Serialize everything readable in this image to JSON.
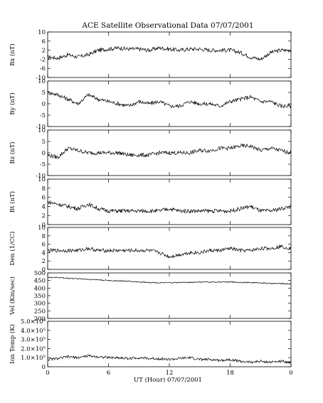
{
  "title": "ACE Satellite Observational Data   07/07/2001",
  "xlabel": "UT (Hour)   07/07/2001",
  "x_ticks": [
    "0",
    "6",
    "12",
    "18",
    "0"
  ],
  "chart_data": [
    {
      "type": "line",
      "ylabel": "Bx (nT)",
      "ylim": [
        -10,
        10
      ],
      "yticks": [
        "10",
        "6",
        "2",
        "-2",
        "-6",
        "-10"
      ],
      "x": [
        0,
        1,
        2,
        3,
        4,
        5,
        6,
        7,
        8,
        9,
        10,
        11,
        12,
        13,
        14,
        15,
        16,
        17,
        18,
        19,
        20,
        21,
        22,
        23,
        24
      ],
      "values": [
        -1,
        -1.5,
        0,
        -1,
        0,
        2,
        2.5,
        3,
        2.5,
        2.5,
        2,
        3,
        2.5,
        2,
        2.5,
        2.5,
        2,
        2,
        2,
        1,
        -1,
        -2,
        1,
        2,
        2
      ]
    },
    {
      "type": "line",
      "ylabel": "By (nT)",
      "ylim": [
        -10,
        10
      ],
      "yticks": [
        "10",
        "5",
        "0",
        "-5",
        "-10"
      ],
      "x": [
        0,
        1,
        2,
        3,
        4,
        5,
        6,
        7,
        8,
        9,
        10,
        11,
        12,
        13,
        14,
        15,
        16,
        17,
        18,
        19,
        20,
        21,
        22,
        23,
        24
      ],
      "values": [
        5,
        4,
        2,
        0,
        4,
        2,
        1,
        0,
        -1,
        1,
        0,
        1,
        -1,
        -1,
        1,
        0,
        0,
        -1,
        1,
        2,
        3,
        1,
        1,
        -1,
        -1
      ]
    },
    {
      "type": "line",
      "ylabel": "Bz (nT)",
      "ylim": [
        -10,
        10
      ],
      "yticks": [
        "10",
        "5",
        "0",
        "-5",
        "-10"
      ],
      "x": [
        0,
        1,
        2,
        3,
        4,
        5,
        6,
        7,
        8,
        9,
        10,
        11,
        12,
        13,
        14,
        15,
        16,
        17,
        18,
        19,
        20,
        21,
        22,
        23,
        24
      ],
      "values": [
        -1,
        -2,
        2,
        1,
        0,
        0,
        0,
        0,
        -1,
        -1,
        -1,
        0,
        0,
        0,
        0,
        1,
        1,
        2,
        2,
        3,
        3,
        1,
        2,
        1,
        0
      ]
    },
    {
      "type": "line",
      "ylabel": "Bt (nT)",
      "ylim": [
        0,
        10
      ],
      "yticks": [
        "10",
        "8",
        "6",
        "4",
        "2",
        "0"
      ],
      "x": [
        0,
        1,
        2,
        3,
        4,
        5,
        6,
        7,
        8,
        9,
        10,
        11,
        12,
        13,
        14,
        15,
        16,
        17,
        18,
        19,
        20,
        21,
        22,
        23,
        24
      ],
      "values": [
        5,
        4.5,
        4,
        3.5,
        4.5,
        3.5,
        3,
        3,
        3,
        3,
        3,
        3,
        3.5,
        3,
        3,
        3,
        3,
        3,
        3,
        3.5,
        4,
        3,
        3,
        3.5,
        4
      ]
    },
    {
      "type": "line",
      "ylabel": "Den (1/CC)",
      "ylim": [
        0,
        10
      ],
      "yticks": [
        "10",
        "8",
        "6",
        "4",
        "2",
        "0"
      ],
      "x": [
        0,
        1,
        2,
        3,
        4,
        5,
        6,
        7,
        8,
        9,
        10,
        11,
        12,
        13,
        14,
        15,
        16,
        17,
        18,
        19,
        20,
        21,
        22,
        23,
        24
      ],
      "values": [
        4.5,
        4.5,
        4.5,
        4.5,
        5,
        4.5,
        4.5,
        4.5,
        4.5,
        4.5,
        4.5,
        4,
        3,
        3.5,
        4,
        4,
        4.5,
        4.5,
        5,
        4.5,
        4.5,
        5,
        5,
        5.5,
        5
      ]
    },
    {
      "type": "line",
      "ylabel": "Vel (Km/sec)",
      "ylim": [
        200,
        500
      ],
      "yticks": [
        "500",
        "450",
        "400",
        "350",
        "300",
        "250",
        "200"
      ],
      "x": [
        0,
        1,
        2,
        3,
        4,
        5,
        6,
        7,
        8,
        9,
        10,
        11,
        12,
        13,
        14,
        15,
        16,
        17,
        18,
        19,
        20,
        21,
        22,
        23,
        24
      ],
      "values": [
        470,
        470,
        465,
        462,
        458,
        455,
        450,
        448,
        445,
        440,
        438,
        435,
        435,
        437,
        438,
        440,
        440,
        440,
        440,
        438,
        436,
        435,
        430,
        430,
        428
      ]
    },
    {
      "type": "line",
      "ylabel": "Ion Temp (K)",
      "ylim": [
        0,
        500000
      ],
      "yticks": [
        "5.0×10⁵",
        "4.0×10⁵",
        "3.0×10⁵",
        "2.0×10⁵",
        "1.0×10⁵",
        "0"
      ],
      "x": [
        0,
        1,
        2,
        3,
        4,
        5,
        6,
        7,
        8,
        9,
        10,
        11,
        12,
        13,
        14,
        15,
        16,
        17,
        18,
        19,
        20,
        21,
        22,
        23,
        24
      ],
      "values": [
        80000,
        90000,
        110000,
        100000,
        120000,
        110000,
        100000,
        100000,
        90000,
        100000,
        90000,
        90000,
        80000,
        90000,
        100000,
        80000,
        80000,
        70000,
        80000,
        60000,
        50000,
        60000,
        50000,
        60000,
        50000
      ]
    }
  ]
}
